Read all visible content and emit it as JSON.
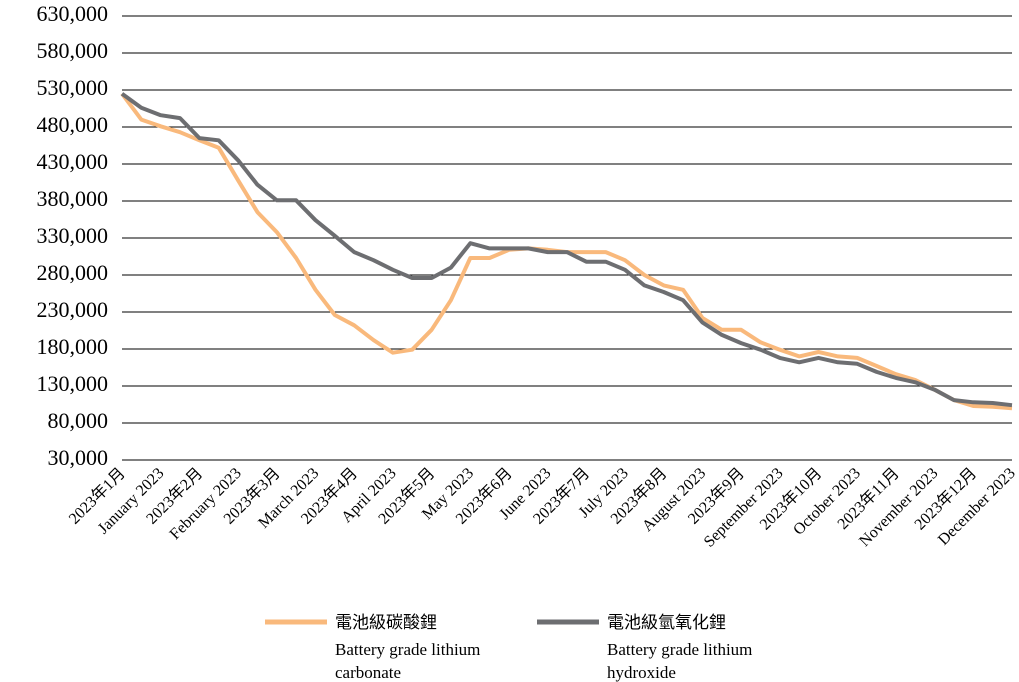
{
  "chart_data": {
    "type": "line",
    "categories": [
      "2023年1月",
      null,
      "January 2023",
      null,
      "2023年2月",
      null,
      "February 2023",
      null,
      "2023年3月",
      null,
      "March 2023",
      null,
      "2023年4月",
      null,
      "April 2023",
      null,
      "2023年5月",
      null,
      "May 2023",
      null,
      "2023年6月",
      null,
      "June 2023",
      null,
      "2023年7月",
      null,
      "July 2023",
      null,
      "2023年8月",
      null,
      "August 2023",
      null,
      "2023年9月",
      null,
      "September 2023",
      null,
      "2023年10月",
      null,
      "October 2023",
      null,
      "2023年11月",
      null,
      "November 2023",
      null,
      "2023年12月",
      null,
      "December 2023"
    ],
    "series": [
      {
        "name": "電池級碳酸鋰",
        "name_en_lines": [
          "Battery grade lithium",
          "carbonate"
        ],
        "color": "#f9b97c",
        "values": [
          525000,
          490000,
          481000,
          473000,
          462000,
          452000,
          408000,
          365000,
          338000,
          303000,
          260000,
          226000,
          212000,
          192000,
          175000,
          179000,
          206000,
          246000,
          303000,
          303000,
          314000,
          316000,
          314000,
          311000,
          311000,
          311000,
          300000,
          280000,
          266000,
          260000,
          222000,
          206000,
          206000,
          189000,
          179000,
          170000,
          176000,
          170000,
          168000,
          157000,
          146000,
          138000,
          125000,
          111000,
          103000,
          102000,
          100000
        ]
      },
      {
        "name": "電池級氫氧化鋰",
        "name_en_lines": [
          "Battery grade lithium",
          "hydroxide"
        ],
        "color": "#6d6e71",
        "values": [
          525000,
          506000,
          496000,
          492000,
          465000,
          462000,
          435000,
          402000,
          381000,
          381000,
          354000,
          333000,
          311000,
          300000,
          287000,
          276000,
          276000,
          290000,
          323000,
          316000,
          316000,
          316000,
          311000,
          311000,
          298000,
          298000,
          287000,
          266000,
          257000,
          246000,
          216000,
          199000,
          188000,
          179000,
          168000,
          162000,
          168000,
          162000,
          160000,
          149000,
          141000,
          135000,
          125000,
          111000,
          108000,
          107000,
          104000
        ]
      }
    ],
    "ylim": [
      30000,
      630000
    ],
    "yticks": [
      {
        "value": 30000,
        "label": "30,000"
      },
      {
        "value": 80000,
        "label": "80,000"
      },
      {
        "value": 130000,
        "label": "130,000"
      },
      {
        "value": 180000,
        "label": "180,000"
      },
      {
        "value": 230000,
        "label": "230,000"
      },
      {
        "value": 280000,
        "label": "280,000"
      },
      {
        "value": 330000,
        "label": "330,000"
      },
      {
        "value": 380000,
        "label": "380,000"
      },
      {
        "value": 430000,
        "label": "430,000"
      },
      {
        "value": 480000,
        "label": "480,000"
      },
      {
        "value": 530000,
        "label": "530,000"
      },
      {
        "value": 580000,
        "label": "580,000"
      },
      {
        "value": 630000,
        "label": "630,000"
      }
    ],
    "grid": true
  }
}
